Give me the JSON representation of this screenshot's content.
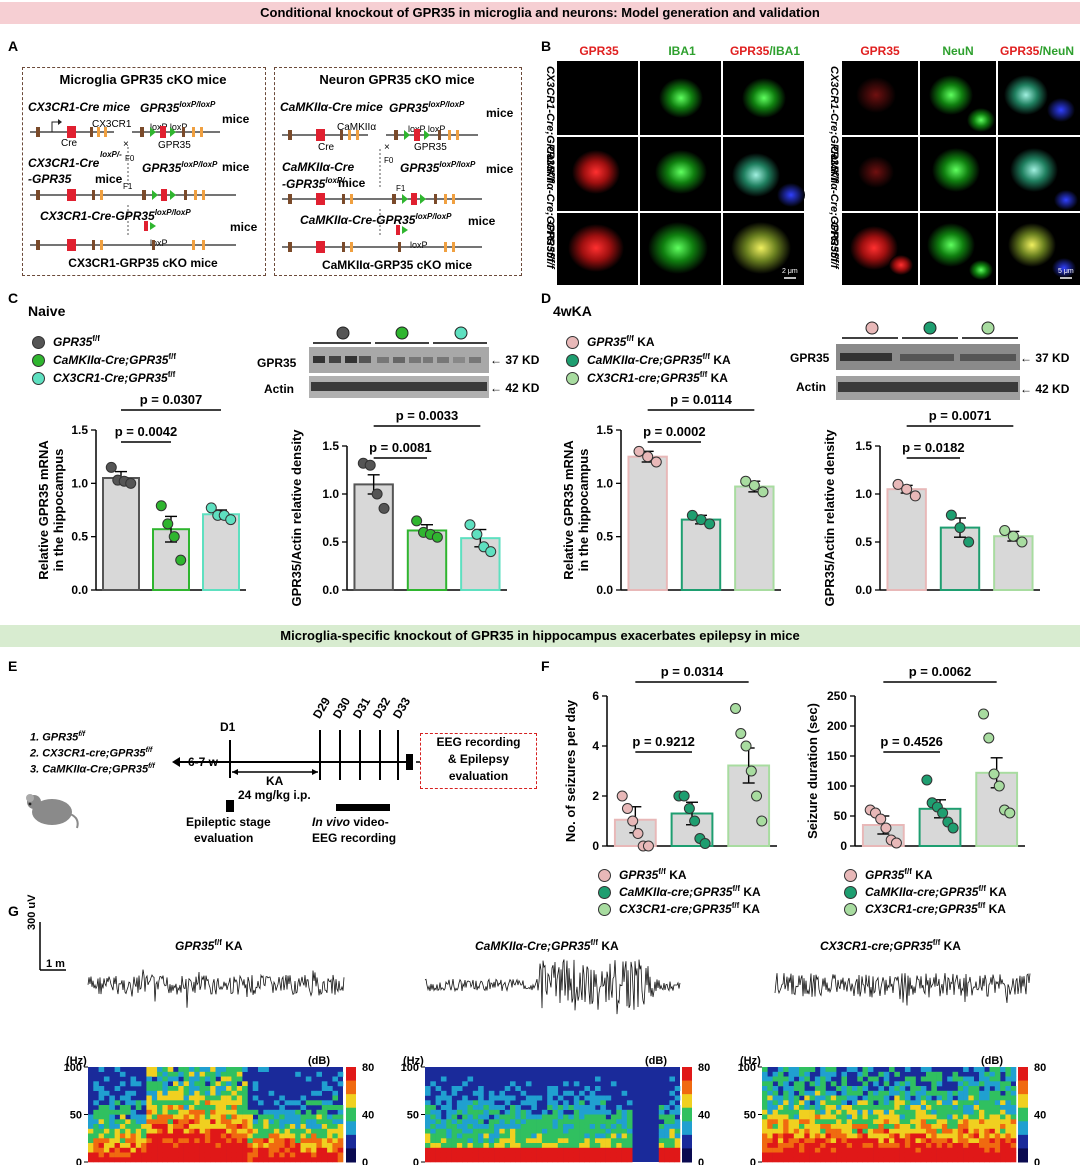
{
  "banners": {
    "top": "Conditional knockout of GPR35 in microglia and neurons: Model generation and validation",
    "middle": "Microglia-specific knockout of GPR35 in hippocampus exacerbates  epilepsy in mice"
  },
  "panel_letters": {
    "a": "A",
    "b": "B",
    "c": "C",
    "d": "D",
    "e": "E",
    "f": "F",
    "g": "G"
  },
  "panelA": {
    "left": {
      "title": "Microglia GPR35 cKO mice",
      "cre_mice": "CX3CR1-Cre mice",
      "flox_mice": "GPR35",
      "flox_sup": "loxP/loxP",
      "mice": "mice",
      "gene_label": "CX3CR1",
      "cre": "Cre",
      "loxp_pair": "loxP loxP",
      "target": "GPR35",
      "het_line1": "CX3CR1-Cre",
      "het_sup": "loxP/-",
      "het_line2": "-GPR35",
      "het_mice": "mice",
      "f0": "F0",
      "f1": "F1",
      "x": "×",
      "flox2": "GPR35",
      "flox2_sup": "loxP/loxP",
      "flox2_mice": "mice",
      "final_geno": "CX3CR1-Cre-GPR35",
      "final_sup": "loxP/loxP",
      "final_mice": "mice",
      "loxp": "loxP",
      "result": "CX3CR1-GRP35 cKO mice"
    },
    "right": {
      "title": "Neuron GPR35 cKO mice",
      "cre_mice": "CaMKIIα-Cre mice",
      "flox_mice": "GPR35",
      "flox_sup": "loxP/loxP",
      "mice": "mice",
      "gene_label": "CaMKIIα",
      "cre": "Cre",
      "loxp_pair": "loxP loxP",
      "target": "GPR35",
      "het_line1": "CaMKIIα-Cre",
      "het_sup": "loxP/-",
      "het_line2": "-GPR35",
      "het_mice": "mice",
      "f0": "F0",
      "f1": "F1",
      "x": "×",
      "flox2": "GPR35",
      "flox2_sup": "loxP/loxP",
      "flox2_mice": "mice",
      "final_geno": "CaMKIIα-Cre-GPR35",
      "final_sup": "loxP/loxP",
      "final_mice": "mice",
      "loxp": "loxP",
      "result": "CaMKIIα-GRP35 cKO mice"
    }
  },
  "panelB": {
    "left_cols": [
      "GPR35",
      "IBA1",
      "GPR35",
      "/IBA1"
    ],
    "right_cols": [
      "GPR35",
      "NeuN",
      "GPR35",
      "/NeuN"
    ],
    "left_rows": [
      "CX3CR1-Cre;GPR35f/f",
      "CaMKIIα-Cre;GPR35f/f",
      "GPR35f/f"
    ],
    "right_rows": [
      "CX3CR1-Cre;GPR35f/f",
      "CaMKIIα-Cre;GPR35f/f",
      "GPR35f/f"
    ],
    "scale_left": "2 μm",
    "scale_right": "5 μm"
  },
  "panelC": {
    "subtitle": "Naive",
    "legend": [
      {
        "name": "GPR35",
        "sup": "f/f",
        "color": "#555555"
      },
      {
        "name": "CaMKIIα-Cre;GPR35",
        "sup": "f/f",
        "color": "#2fb52f"
      },
      {
        "name": "CX3CR1-Cre;GPR35",
        "sup": "f/f",
        "color": "#5ee0c0"
      }
    ],
    "blot": {
      "target": "GPR35",
      "control": "Actin",
      "target_kd": "37 KD",
      "control_kd": "42 KD"
    }
  },
  "panelD": {
    "subtitle": "4wKA",
    "legend": [
      {
        "name": "GPR35",
        "sup": "f/f",
        "suffix": " KA",
        "color": "#e8b8b8"
      },
      {
        "name": "CaMKIIα-Cre;GPR35",
        "sup": "f/f",
        "suffix": " KA",
        "color": "#1e9e70"
      },
      {
        "name": "CX3CR1-cre;GPR35",
        "sup": "f/f",
        "suffix": " KA",
        "color": "#a8dca0"
      }
    ],
    "blot": {
      "target": "GPR35",
      "control": "Actin",
      "target_kd": "37 KD",
      "control_kd": "42 KD"
    }
  },
  "panelE": {
    "groups": [
      "1. GPR35",
      "2. CX3CR1-cre;GPR35",
      "3. CaMKIIα-Cre;GPR35"
    ],
    "group_sup": "f/f",
    "age": "6-7 w",
    "d1": "D1",
    "days": [
      "D29",
      "D30",
      "D31",
      "D32",
      "D33"
    ],
    "ka": "KA",
    "dose": "24 mg/kg i.p.",
    "stage1": "Epileptic stage",
    "stage2": "evaluation",
    "invivo": "In vivo",
    "video1": " video-",
    "video2": "EEG recording",
    "eeg1": "EEG recording",
    "eeg2": "& Epilepsy",
    "eeg3": "evaluation"
  },
  "panelF": {
    "legend": [
      {
        "name": "GPR35",
        "sup": "f/f",
        "suffix": " KA",
        "color": "#e8b8b8"
      },
      {
        "name": "CaMKIIα-cre;GPR35",
        "sup": "f/f",
        "suffix": " KA",
        "color": "#1e9e70"
      },
      {
        "name": "CX3CR1-cre;GPR35",
        "sup": "f/f",
        "suffix": " KA",
        "color": "#a8dca0"
      }
    ]
  },
  "panelG": {
    "titles": [
      {
        "name": "GPR35",
        "sup": "f/f",
        "suffix": " KA"
      },
      {
        "name": "CaMKIIα-Cre;GPR35",
        "sup": "f/f",
        "suffix": " KA"
      },
      {
        "name": "CX3CR1-cre;GPR35",
        "sup": "f/f",
        "suffix": " KA"
      }
    ],
    "scale_v": "300 uV",
    "scale_t": "1 m",
    "hz": "(Hz)",
    "db": "(dB)",
    "yticks": [
      "100",
      "50",
      "0"
    ],
    "cbticks": [
      "80",
      "40",
      "0"
    ]
  },
  "chart_data": [
    {
      "id": "C1",
      "type": "bar",
      "categories": [
        "GPR35f/f",
        "CaMKIIα-Cre;GPR35f/f",
        "CX3CR1-Cre;GPR35f/f"
      ],
      "values": [
        1.05,
        0.57,
        0.71
      ],
      "errors": [
        0.06,
        0.12,
        0.04
      ],
      "points": [
        [
          1.15,
          1.03,
          1.02,
          1.0
        ],
        [
          0.79,
          0.62,
          0.5,
          0.28
        ],
        [
          0.77,
          0.7,
          0.7,
          0.66
        ]
      ],
      "ylabel": "Relative GPR35 mRNA in the hippocampus",
      "ylim": [
        0,
        1.5
      ],
      "yticks": [
        0.0,
        0.5,
        1.0,
        1.5
      ],
      "annotations": [
        {
          "text": "p = 0.0042",
          "pair": [
            0,
            1
          ]
        },
        {
          "text": "p = 0.0307",
          "pair": [
            0,
            2
          ]
        }
      ],
      "colors": [
        "#555555",
        "#2fb52f",
        "#5ee0c0"
      ]
    },
    {
      "id": "C2",
      "type": "bar",
      "categories": [
        "GPR35f/f",
        "CaMKIIα-Cre;GPR35f/f",
        "CX3CR1-Cre;GPR35f/f"
      ],
      "values": [
        1.1,
        0.62,
        0.54
      ],
      "errors": [
        0.1,
        0.06,
        0.09
      ],
      "points": [
        [
          1.32,
          1.3,
          1.0,
          0.85
        ],
        [
          0.72,
          0.6,
          0.58,
          0.55
        ],
        [
          0.68,
          0.58,
          0.45,
          0.4
        ]
      ],
      "ylabel": "GPR35/Actin relative density",
      "ylim": [
        0,
        1.5
      ],
      "yticks": [
        0.0,
        0.5,
        1.0,
        1.5
      ],
      "annotations": [
        {
          "text": "p = 0.0081",
          "pair": [
            0,
            1
          ]
        },
        {
          "text": "p = 0.0033",
          "pair": [
            0,
            2
          ]
        }
      ],
      "colors": [
        "#555555",
        "#2fb52f",
        "#5ee0c0"
      ]
    },
    {
      "id": "D1",
      "type": "bar",
      "categories": [
        "GPR35f/f KA",
        "CaMKIIα-Cre;GPR35f/f KA",
        "CX3CR1-cre;GPR35f/f KA"
      ],
      "values": [
        1.25,
        0.66,
        0.97
      ],
      "errors": [
        0.05,
        0.04,
        0.05
      ],
      "points": [
        [
          1.3,
          1.25,
          1.2
        ],
        [
          0.7,
          0.66,
          0.62
        ],
        [
          1.02,
          0.98,
          0.92
        ]
      ],
      "ylabel": "Relative GPR35 mRNA in the hippocampus",
      "ylim": [
        0,
        1.5
      ],
      "yticks": [
        0.0,
        0.5,
        1.0,
        1.5
      ],
      "annotations": [
        {
          "text": "p = 0.0002",
          "pair": [
            0,
            1
          ]
        },
        {
          "text": "p = 0.0114",
          "pair": [
            0,
            2
          ]
        }
      ],
      "colors": [
        "#e8b8b8",
        "#1e9e70",
        "#a8dca0"
      ]
    },
    {
      "id": "D2",
      "type": "bar",
      "categories": [
        "GPR35f/f KA",
        "CaMKIIα-Cre;GPR35f/f KA",
        "CX3CR1-cre;GPR35f/f KA"
      ],
      "values": [
        1.05,
        0.65,
        0.56
      ],
      "errors": [
        0.04,
        0.1,
        0.05
      ],
      "points": [
        [
          1.1,
          1.05,
          0.98
        ],
        [
          0.78,
          0.65,
          0.5
        ],
        [
          0.62,
          0.56,
          0.5
        ]
      ],
      "ylabel": "GPR35/Actin relative density",
      "ylim": [
        0,
        1.5
      ],
      "yticks": [
        0.0,
        0.5,
        1.0,
        1.5
      ],
      "annotations": [
        {
          "text": "p = 0.0182",
          "pair": [
            0,
            1
          ]
        },
        {
          "text": "p = 0.0071",
          "pair": [
            0,
            2
          ]
        }
      ],
      "colors": [
        "#e8b8b8",
        "#1e9e70",
        "#a8dca0"
      ]
    },
    {
      "id": "F1",
      "type": "bar",
      "categories": [
        "GPR35f/f KA",
        "CaMKIIα-cre;GPR35f/f KA",
        "CX3CR1-cre;GPR35f/f KA"
      ],
      "values": [
        1.05,
        1.3,
        3.22
      ],
      "errors": [
        0.52,
        0.45,
        0.7
      ],
      "points": [
        [
          2.0,
          1.5,
          1.0,
          0.5,
          0.0,
          0.0
        ],
        [
          2.0,
          2.0,
          1.5,
          1.0,
          0.3,
          0.1
        ],
        [
          5.5,
          4.5,
          4.0,
          3.0,
          2.0,
          1.0
        ]
      ],
      "ylabel": "No. of seizures per day",
      "ylim": [
        0,
        6
      ],
      "yticks": [
        0,
        2,
        4,
        6
      ],
      "annotations": [
        {
          "text": "p = 0.9212",
          "pair": [
            0,
            1
          ]
        },
        {
          "text": "p = 0.0314",
          "pair": [
            0,
            2
          ]
        }
      ],
      "colors": [
        "#e8b8b8",
        "#1e9e70",
        "#a8dca0"
      ]
    },
    {
      "id": "F2",
      "type": "bar",
      "categories": [
        "GPR35f/f KA",
        "CaMKIIα-cre;GPR35f/f KA",
        "CX3CR1-cre;GPR35f/f KA"
      ],
      "values": [
        35,
        62,
        122
      ],
      "errors": [
        15,
        15,
        25
      ],
      "points": [
        [
          60,
          55,
          45,
          30,
          10,
          5
        ],
        [
          110,
          72,
          65,
          55,
          40,
          30
        ],
        [
          220,
          180,
          120,
          100,
          60,
          55
        ]
      ],
      "ylabel": "Seizure duration (sec)",
      "ylim": [
        0,
        250
      ],
      "yticks": [
        0,
        50,
        100,
        150,
        200,
        250
      ],
      "annotations": [
        {
          "text": "p = 0.4526",
          "pair": [
            0,
            1
          ]
        },
        {
          "text": "p = 0.0062",
          "pair": [
            0,
            2
          ]
        }
      ],
      "colors": [
        "#e8b8b8",
        "#1e9e70",
        "#a8dca0"
      ]
    }
  ]
}
